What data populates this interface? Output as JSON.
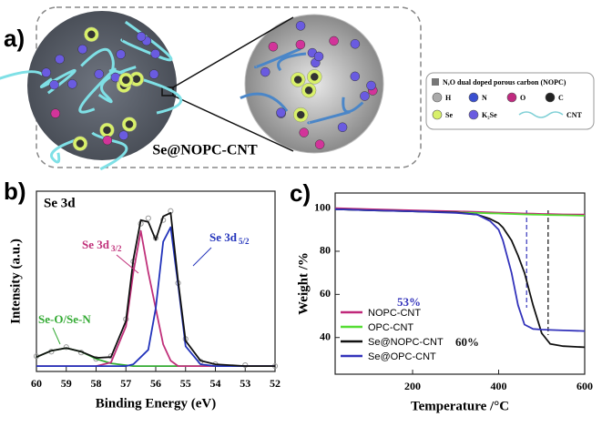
{
  "panel_labels": [
    "a)",
    "b)",
    "c)"
  ],
  "schematic": {
    "label": "Se@NOPC-CNT",
    "legend": {
      "title": "N,O dual doped porous carbon (NOPC)",
      "items": [
        "H",
        "N",
        "O",
        "C",
        "Se",
        "K₂Se",
        "CNT"
      ]
    }
  },
  "chart_data": [
    {
      "type": "line",
      "title": "Se 3d",
      "xlabel": "Binding Energy (eV)",
      "ylabel": "Intensity (a.u.)",
      "x": [
        60,
        59.5,
        59,
        58.5,
        58,
        57.5,
        57,
        56.75,
        56.5,
        56.25,
        56,
        55.75,
        55.5,
        55.25,
        55,
        54.5,
        54,
        53,
        52
      ],
      "xlim": [
        60,
        52
      ],
      "xticks": [
        60,
        59,
        58,
        57,
        56,
        55,
        54,
        53,
        52
      ],
      "ylim": [
        0,
        100
      ],
      "series": [
        {
          "color": "#9a9a9a",
          "marker": "circle",
          "values": [
            8.5,
            11,
            13.5,
            10.5,
            7,
            8.5,
            29,
            61,
            82,
            85,
            74,
            84,
            89,
            49,
            18,
            5.5,
            4,
            3.5,
            3
          ]
        },
        {
          "color": "#33aa33",
          "values": [
            8,
            11.5,
            13,
            11,
            7,
            4.5,
            3.5,
            3,
            3,
            3,
            3,
            3,
            3,
            3,
            3,
            3,
            3,
            3,
            3
          ]
        },
        {
          "color": "#c0307a",
          "values": [
            3,
            3,
            3,
            3,
            3,
            5,
            25,
            55,
            78,
            55,
            35,
            15,
            6,
            3,
            3,
            3,
            3,
            3,
            3
          ]
        },
        {
          "color": "#2233bb",
          "values": [
            3,
            3,
            3,
            3,
            3,
            3,
            3,
            4,
            8,
            12,
            35,
            72,
            80,
            48,
            14,
            4,
            3,
            3,
            3
          ]
        },
        {
          "color": "#111111",
          "values": [
            8,
            11.5,
            13,
            11,
            7.5,
            8,
            28,
            62,
            84,
            83,
            73,
            86,
            88,
            50,
            17,
            6,
            4,
            3,
            3
          ]
        }
      ],
      "annotations": [
        {
          "text": "Se 3d",
          "sub": "3/2",
          "color": "#c0307a"
        },
        {
          "text": "Se 3d",
          "sub": "5/2",
          "color": "#2233bb"
        },
        {
          "text": "Se-O/Se-N",
          "color": "#33aa33"
        }
      ]
    },
    {
      "type": "line",
      "xlabel": "Temperature /°C",
      "ylabel": "Weight /%",
      "x": [
        20,
        100,
        200,
        300,
        350,
        380,
        400,
        410,
        430,
        445,
        460,
        480,
        500,
        520,
        550,
        600
      ],
      "xlim": [
        20,
        600
      ],
      "xticks": [
        200,
        400,
        600
      ],
      "ylim": [
        23,
        107
      ],
      "yticks": [
        40,
        60,
        80,
        100
      ],
      "legend": "lower left",
      "series": [
        {
          "name": "NOPC-CNT",
          "color": "#c0287a",
          "values": [
            100,
            99.5,
            99,
            98.5,
            98.2,
            98,
            97.9,
            97.8,
            97.7,
            97.6,
            97.5,
            97.4,
            97.3,
            97.2,
            97.1,
            97
          ]
        },
        {
          "name": "OPC-CNT",
          "color": "#55dd33",
          "values": [
            99.5,
            99,
            98.5,
            98,
            97.8,
            97.6,
            97.5,
            97.4,
            97.3,
            97.2,
            97.1,
            97,
            96.9,
            96.8,
            96.7,
            96.5
          ]
        },
        {
          "name": "Se@NOPC-CNT",
          "color": "#111111",
          "values": [
            99.5,
            99,
            98.5,
            98,
            97,
            95,
            93,
            91,
            85,
            78,
            70,
            55,
            42,
            37,
            36,
            35.5
          ]
        },
        {
          "name": "Se@OPC-CNT",
          "color": "#3333bb",
          "values": [
            99.5,
            99,
            98.5,
            97.8,
            97,
            94,
            90,
            85,
            70,
            55,
            46,
            44,
            43.7,
            43.5,
            43.3,
            43
          ]
        }
      ],
      "dashed_lines": [
        465,
        515
      ],
      "annotations": [
        {
          "text": "53%",
          "color": "#3333bb"
        },
        {
          "text": "60%",
          "color": "#111111"
        }
      ]
    }
  ]
}
